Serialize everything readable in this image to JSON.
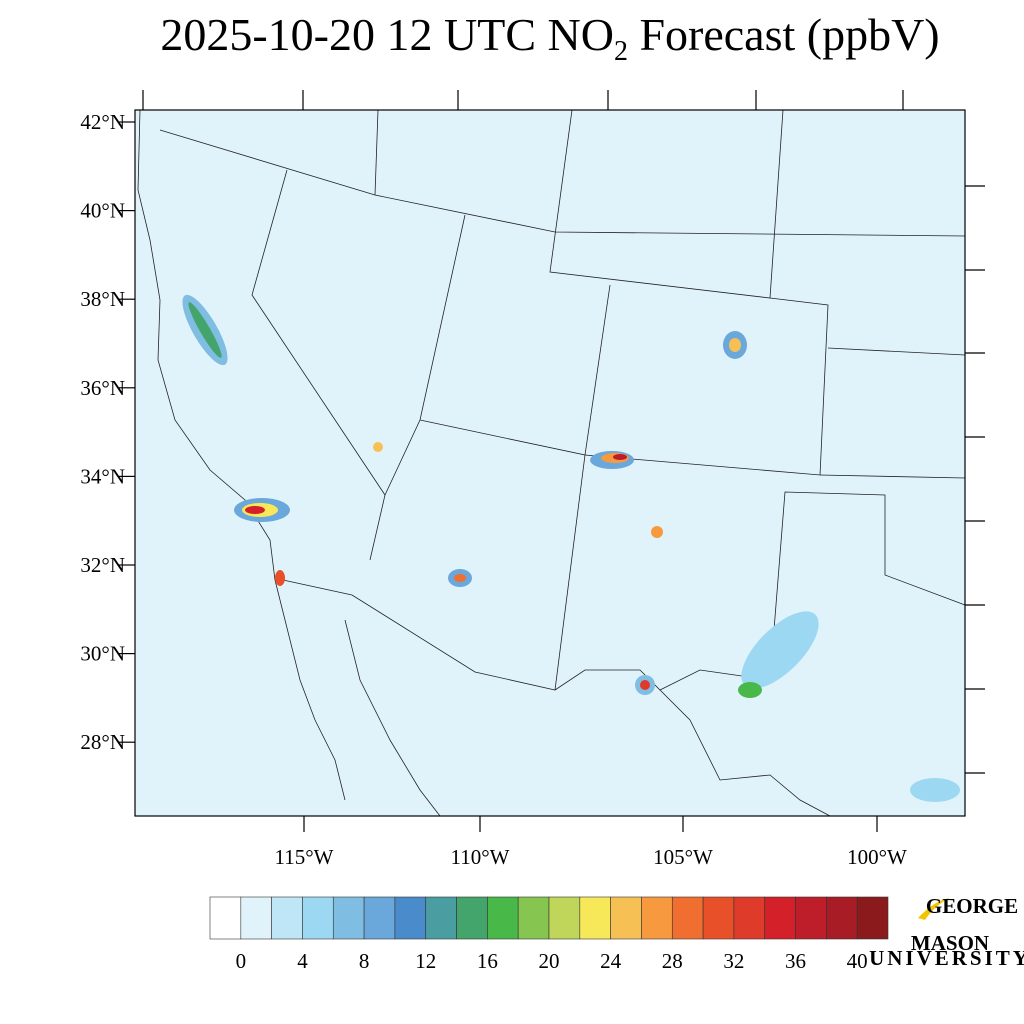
{
  "title": {
    "before": "2025-10-20 12 UTC NO",
    "subscript": "2",
    "after": " Forecast (ppbV)"
  },
  "lat_labels": [
    "42°N",
    "40°N",
    "38°N",
    "36°N",
    "34°N",
    "32°N",
    "30°N",
    "28°N"
  ],
  "lon_labels": [
    "115°W",
    "110°W",
    "105°W",
    "100°W"
  ],
  "colorbar": {
    "colors": [
      "#ffffff",
      "#e0f3fb",
      "#bfe6f7",
      "#9dd8f3",
      "#80bde3",
      "#6aa8dc",
      "#4a8ccb",
      "#4a9da0",
      "#43a56b",
      "#48b848",
      "#86c650",
      "#bfd65a",
      "#f7e85a",
      "#f7c054",
      "#f79a3f",
      "#f06e30",
      "#e8502a",
      "#df3b2a",
      "#d42028",
      "#be1e2a",
      "#a81c26",
      "#8b1a1c"
    ],
    "labels": [
      "0",
      "4",
      "8",
      "12",
      "16",
      "20",
      "24",
      "28",
      "32",
      "36",
      "40"
    ]
  },
  "logo": {
    "top": "GEORGE",
    "main": "MASON",
    "bottom": "UNIVERSITY"
  }
}
